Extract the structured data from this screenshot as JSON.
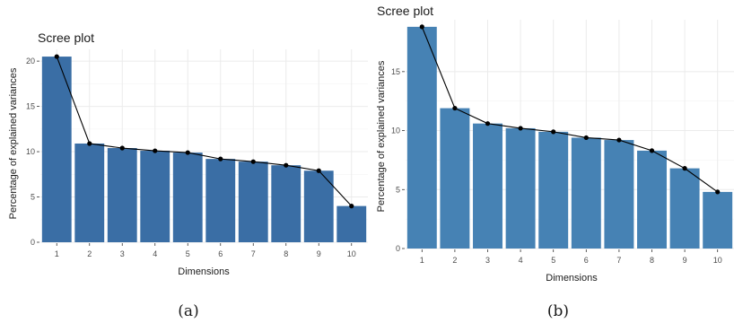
{
  "chart_data": [
    {
      "type": "bar",
      "title": "Scree plot",
      "xlabel": "Dimensions",
      "ylabel": "Percentage of explained variances",
      "categories": [
        "1",
        "2",
        "3",
        "4",
        "5",
        "6",
        "7",
        "8",
        "9",
        "10"
      ],
      "values": [
        20.5,
        10.9,
        10.4,
        10.1,
        9.9,
        9.2,
        8.9,
        8.5,
        7.9,
        4.0
      ],
      "line_overlay": true,
      "ylim": [
        0,
        21.3
      ],
      "yticks": [
        0,
        5,
        10,
        15,
        20
      ],
      "grid": true,
      "bar_color": "#3a6ea5",
      "caption": "(a)"
    },
    {
      "type": "bar",
      "title": "Scree plot",
      "xlabel": "Dimensions",
      "ylabel": "Percentage of explained variances",
      "categories": [
        "1",
        "2",
        "3",
        "4",
        "5",
        "6",
        "7",
        "8",
        "9",
        "10"
      ],
      "values": [
        18.8,
        11.9,
        10.6,
        10.2,
        9.9,
        9.4,
        9.2,
        8.3,
        6.8,
        4.8
      ],
      "line_overlay": true,
      "ylim": [
        0,
        19.4
      ],
      "yticks": [
        0,
        5,
        10,
        15
      ],
      "grid": true,
      "bar_color": "#4682b4",
      "caption": "(b)"
    }
  ]
}
